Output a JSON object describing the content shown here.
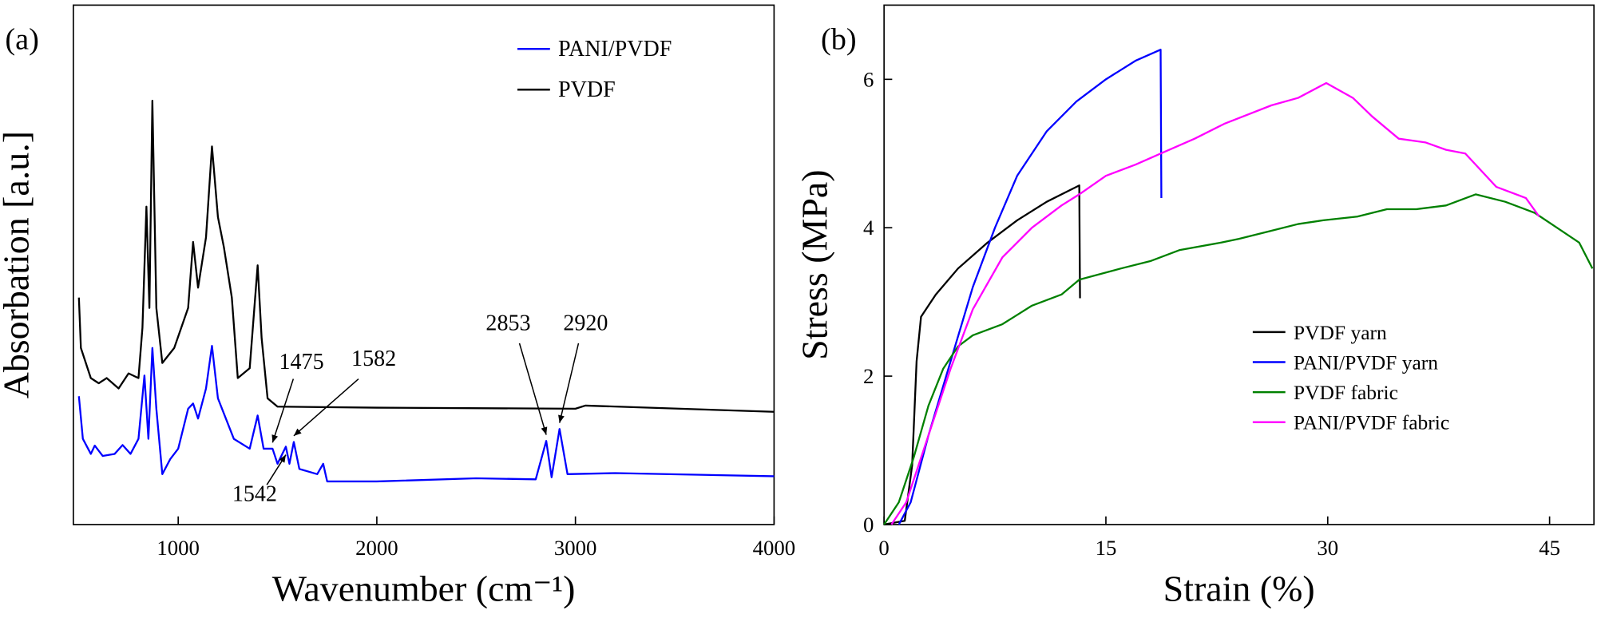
{
  "chart_data": [
    {
      "type": "line",
      "label": "(a)",
      "xlabel": "Wavenumber (cm⁻¹)",
      "ylabel": "Absorbation [a.u.]",
      "xlim": [
        472,
        4000
      ],
      "ylim": [
        0,
        10
      ],
      "xticks": [
        1000,
        2000,
        3000,
        4000
      ],
      "legend": "upper right",
      "peak_labels": [
        1475,
        1582,
        1542,
        2853,
        2920
      ],
      "series": [
        {
          "name": "PANI/PVDF",
          "color": "#0000ff",
          "x": [
            500,
            520,
            560,
            580,
            620,
            680,
            720,
            760,
            800,
            830,
            850,
            870,
            890,
            920,
            960,
            1000,
            1050,
            1075,
            1100,
            1140,
            1170,
            1200,
            1240,
            1280,
            1360,
            1400,
            1430,
            1475,
            1500,
            1542,
            1560,
            1582,
            1610,
            1700,
            1730,
            1750,
            2000,
            2500,
            2800,
            2853,
            2880,
            2920,
            2960,
            3200,
            4000
          ],
          "values": [
            2.47,
            1.65,
            1.36,
            1.52,
            1.32,
            1.36,
            1.53,
            1.36,
            1.65,
            2.87,
            1.65,
            3.4,
            2.23,
            0.97,
            1.26,
            1.46,
            2.23,
            2.33,
            2.04,
            2.62,
            3.44,
            2.43,
            2.04,
            1.65,
            1.46,
            2.1,
            1.46,
            1.46,
            1.17,
            1.5,
            1.17,
            1.59,
            1.07,
            0.97,
            1.17,
            0.83,
            0.83,
            0.89,
            0.87,
            1.61,
            0.91,
            1.84,
            0.97,
            0.99,
            0.93
          ]
        },
        {
          "name": "PVDF",
          "color": "#000000",
          "x": [
            500,
            510,
            560,
            600,
            640,
            700,
            750,
            800,
            820,
            840,
            855,
            870,
            890,
            920,
            980,
            1050,
            1075,
            1100,
            1140,
            1170,
            1200,
            1230,
            1270,
            1300,
            1360,
            1400,
            1420,
            1450,
            1500,
            2000,
            3000,
            3050,
            4000
          ],
          "values": [
            4.37,
            3.4,
            2.82,
            2.72,
            2.82,
            2.62,
            2.91,
            2.82,
            3.79,
            6.12,
            4.17,
            8.16,
            4.17,
            3.11,
            3.4,
            4.17,
            5.44,
            4.56,
            5.53,
            7.28,
            5.92,
            5.34,
            4.37,
            2.82,
            3.01,
            4.99,
            3.59,
            2.43,
            2.27,
            2.25,
            2.23,
            2.29,
            2.17
          ]
        }
      ]
    },
    {
      "type": "line",
      "label": "(b)",
      "xlabel": "Strain (%)",
      "ylabel": "Stress (MPa)",
      "xlim": [
        0,
        48
      ],
      "ylim": [
        0,
        7
      ],
      "xticks": [
        0,
        15,
        30,
        45
      ],
      "yticks": [
        0,
        2,
        4,
        6
      ],
      "legend": "center right",
      "series": [
        {
          "name": "PVDF yarn",
          "color": "#000000",
          "x": [
            0,
            1.4,
            1.9,
            2.2,
            2.5,
            3.5,
            5,
            7,
            9,
            11,
            13.2,
            13.25
          ],
          "values": [
            0,
            0.05,
            0.8,
            2.2,
            2.8,
            3.1,
            3.45,
            3.8,
            4.1,
            4.35,
            4.57,
            3.05
          ]
        },
        {
          "name": "PANI/PVDF yarn",
          "color": "#0000ff",
          "x": [
            1,
            1.8,
            3,
            4.5,
            6,
            7.5,
            9,
            11,
            13,
            15,
            17,
            18.7,
            18.75
          ],
          "values": [
            0,
            0.3,
            1.2,
            2.2,
            3.2,
            4.0,
            4.7,
            5.3,
            5.7,
            6.0,
            6.25,
            6.4,
            4.4
          ]
        },
        {
          "name": "PVDF fabric",
          "color": "#008000",
          "x": [
            0,
            1,
            2,
            3,
            4,
            5,
            6,
            8,
            10,
            12,
            13.2,
            16,
            18,
            20,
            22.8,
            24,
            26,
            28,
            29.7,
            32,
            34,
            36,
            38,
            40,
            42,
            44,
            45.5,
            47,
            47.9
          ],
          "values": [
            0,
            0.3,
            0.9,
            1.6,
            2.1,
            2.4,
            2.55,
            2.7,
            2.95,
            3.1,
            3.3,
            3.45,
            3.55,
            3.7,
            3.8,
            3.85,
            3.95,
            4.05,
            4.1,
            4.15,
            4.25,
            4.25,
            4.3,
            4.45,
            4.35,
            4.2,
            4.0,
            3.8,
            3.45
          ]
        },
        {
          "name": "PANI/PVDF fabric",
          "color": "#ff00ff",
          "x": [
            0.5,
            1.5,
            3,
            4.5,
            6,
            8,
            10,
            12,
            13.2,
            15,
            17,
            18.7,
            21,
            23,
            26.2,
            28,
            29.9,
            31.7,
            33,
            34.8,
            36.6,
            38,
            39.3,
            41.4,
            43.4,
            44.3
          ],
          "values": [
            0,
            0.3,
            1.2,
            2.1,
            2.9,
            3.6,
            4.0,
            4.3,
            4.45,
            4.7,
            4.85,
            5.0,
            5.2,
            5.4,
            5.65,
            5.75,
            5.95,
            5.75,
            5.5,
            5.2,
            5.15,
            5.05,
            5.0,
            4.55,
            4.4,
            4.15
          ]
        }
      ]
    }
  ]
}
